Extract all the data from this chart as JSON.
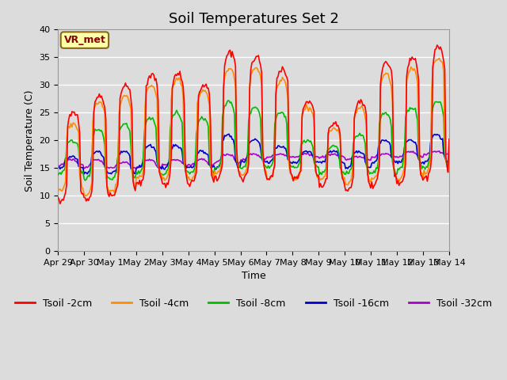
{
  "title": "Soil Temperatures Set 2",
  "xlabel": "Time",
  "ylabel": "Soil Temperature (C)",
  "ylim": [
    0,
    40
  ],
  "background_color": "#dcdcdc",
  "plot_bg_color": "#dcdcdc",
  "annotation_text": "VR_met",
  "annotation_color": "#8b0000",
  "annotation_bg": "#ffffaa",
  "annotation_border": "#8b6914",
  "series_colors": {
    "Tsoil -2cm": "#ff0000",
    "Tsoil -4cm": "#ff8c00",
    "Tsoil -8cm": "#00bb00",
    "Tsoil -16cm": "#0000cc",
    "Tsoil -32cm": "#aa00cc"
  },
  "xtick_labels": [
    "Apr 29",
    "Apr 30",
    "May 1",
    "May 2",
    "May 3",
    "May 4",
    "May 5",
    "May 6",
    "May 7",
    "May 8",
    "May 9",
    "May 10",
    "May 11",
    "May 12",
    "May 13",
    "May 14"
  ],
  "ytick_vals": [
    0,
    5,
    10,
    15,
    20,
    25,
    30,
    35,
    40
  ],
  "grid_color": "#ffffff",
  "title_fontsize": 13,
  "label_fontsize": 9,
  "tick_fontsize": 8,
  "legend_fontsize": 9,
  "lw": 1.2
}
